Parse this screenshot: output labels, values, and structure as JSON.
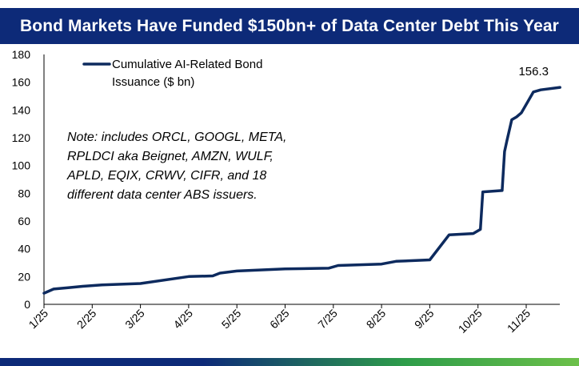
{
  "colors": {
    "title_bg": "#0d2a78",
    "line": "#0d2a5e",
    "stripe_start": "#0d2a78",
    "stripe_end": "#6cc04a"
  },
  "chart_data": {
    "type": "line",
    "title": "Bond Markets Have Funded $150bn+ of Data Center Debt This Year",
    "xlabel": "",
    "ylabel": "",
    "ylim": [
      0,
      180
    ],
    "yticks": [
      0,
      20,
      40,
      60,
      80,
      100,
      120,
      140,
      160,
      180
    ],
    "xticks": [
      "1/25",
      "2/25",
      "3/25",
      "4/25",
      "5/25",
      "6/25",
      "7/25",
      "8/25",
      "9/25",
      "10/25",
      "11/25"
    ],
    "xlim": [
      0,
      10.7
    ],
    "legend": {
      "lines": [
        "Cumulative AI-Related Bond",
        "Issuance ($ bn)"
      ],
      "position": "top-left"
    },
    "note_lines": [
      "Note: includes ORCL, GOOGL, META,",
      "RPLDCI aka Beignet, AMZN, WULF,",
      "APLD, EQIX, CRWV, CIFR, and 18",
      "different data center ABS issuers."
    ],
    "end_label": "156.3",
    "series": [
      {
        "name": "Cumulative AI-Related Bond Issuance ($ bn)",
        "points": [
          [
            0.0,
            8.0
          ],
          [
            0.2,
            11.0
          ],
          [
            0.5,
            12.0
          ],
          [
            0.8,
            13.0
          ],
          [
            1.2,
            14.0
          ],
          [
            2.0,
            15.0
          ],
          [
            3.0,
            20.0
          ],
          [
            3.5,
            20.5
          ],
          [
            3.65,
            22.5
          ],
          [
            4.0,
            24.0
          ],
          [
            5.0,
            25.5
          ],
          [
            5.9,
            26.0
          ],
          [
            6.1,
            28.0
          ],
          [
            7.0,
            29.0
          ],
          [
            7.3,
            31.0
          ],
          [
            8.0,
            32.0
          ],
          [
            8.4,
            50.0
          ],
          [
            8.9,
            51.0
          ],
          [
            9.05,
            54.0
          ],
          [
            9.1,
            81.0
          ],
          [
            9.5,
            82.0
          ],
          [
            9.55,
            110.0
          ],
          [
            9.6,
            118.0
          ],
          [
            9.7,
            133.0
          ],
          [
            9.8,
            135.0
          ],
          [
            9.9,
            138.0
          ],
          [
            10.15,
            153.0
          ],
          [
            10.3,
            154.5
          ],
          [
            10.7,
            156.3
          ]
        ]
      }
    ]
  }
}
